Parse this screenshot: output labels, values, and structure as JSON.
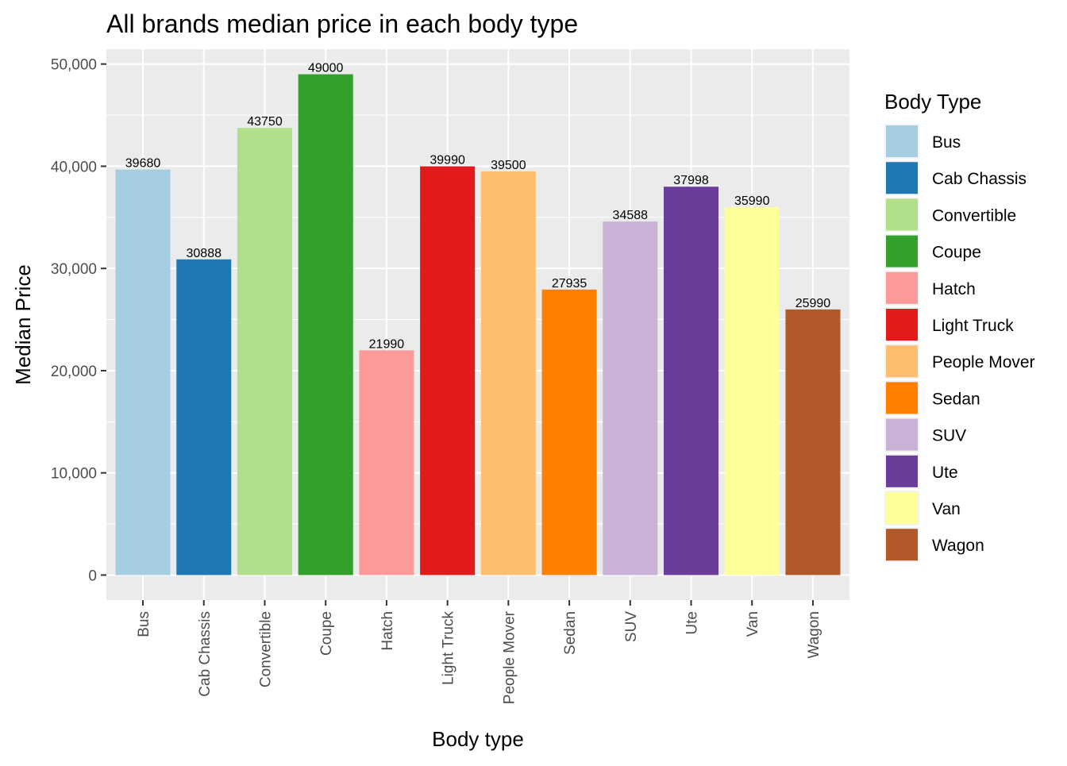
{
  "chart_data": {
    "type": "bar",
    "title": "All brands median price in each body type",
    "xlabel": "Body type",
    "ylabel": "Median Price",
    "categories": [
      "Bus",
      "Cab Chassis",
      "Convertible",
      "Coupe",
      "Hatch",
      "Light Truck",
      "People Mover",
      "Sedan",
      "SUV",
      "Ute",
      "Van",
      "Wagon"
    ],
    "values": [
      39680,
      30888,
      43750,
      49000,
      21990,
      39990,
      39500,
      27935,
      34588,
      37998,
      35990,
      25990
    ],
    "value_labels": [
      "39680",
      "30888",
      "43750",
      "49000",
      "21990",
      "39990",
      "39500",
      "27935",
      "34588",
      "37998",
      "35990",
      "25990"
    ],
    "colors": [
      "#A6CEE3",
      "#1F78B4",
      "#B2DF8A",
      "#33A02C",
      "#FB9A99",
      "#E31A1C",
      "#FDBF6F",
      "#FF7F00",
      "#CAB2D6",
      "#6A3D9A",
      "#FFFF99",
      "#B15928"
    ],
    "y_ticks": [
      0,
      10000,
      20000,
      30000,
      40000,
      50000
    ],
    "y_tick_labels": [
      "0",
      "10,000",
      "20,000",
      "30,000",
      "40,000",
      "50,000"
    ],
    "ylim": [
      -2450,
      51450
    ],
    "grid": true,
    "panel_background": "#EBEBEB",
    "grid_color": "#FFFFFF",
    "legend": {
      "title": "Body Type",
      "position": "right"
    }
  }
}
